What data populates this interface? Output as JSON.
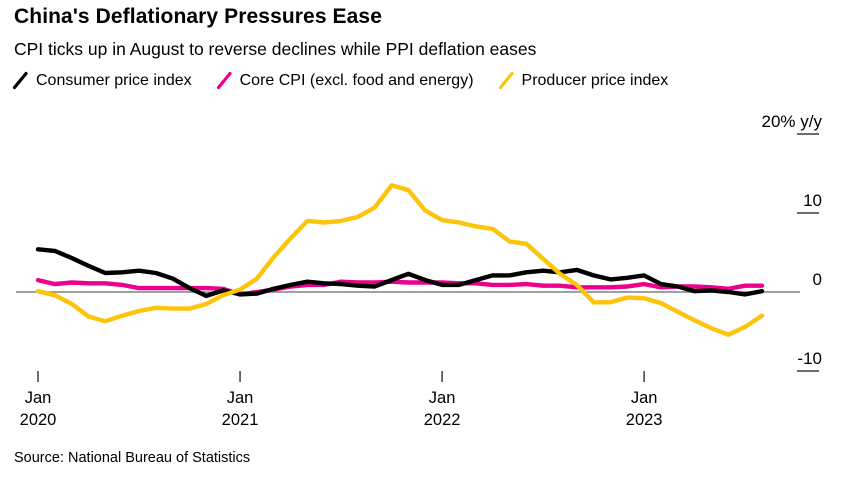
{
  "title": "China's Deflationary Pressures Ease",
  "subtitle": "CPI ticks up in August to reverse declines while PPI deflation eases",
  "source": "Source: National Bureau of Statistics",
  "colors": {
    "cpi": "#000000",
    "core_cpi": "#ec008c",
    "ppi": "#fdc40a",
    "zero_line": "#808080",
    "tick": "#3d3d3d"
  },
  "legend": [
    {
      "label": "Consumer price index",
      "color": "#000000"
    },
    {
      "label": "Core CPI (excl. food and energy)",
      "color": "#ec008c"
    },
    {
      "label": "Producer price index",
      "color": "#fdc40a"
    }
  ],
  "chart_data": {
    "type": "line",
    "title": "China's Deflationary Pressures Ease",
    "subtitle": "CPI ticks up in August to reverse declines while PPI deflation eases",
    "x_unit": "month",
    "x_range": [
      "Jan 2020",
      "Aug 2023"
    ],
    "x_tick_labels": [
      [
        "Jan",
        "2020"
      ],
      [
        "Jan",
        "2021"
      ],
      [
        "Jan",
        "2022"
      ],
      [
        "Jan",
        "2023"
      ]
    ],
    "x_tick_indices": [
      0,
      12,
      24,
      36
    ],
    "y_axis_top_label": "20% y/y",
    "y_ticks": [
      20,
      10,
      0,
      -10
    ],
    "ylim": [
      -13,
      23
    ],
    "grid": false,
    "legend_position": "top-left",
    "series": [
      {
        "name": "Consumer price index",
        "color": "#000000",
        "values": [
          5.4,
          5.2,
          4.3,
          3.3,
          2.4,
          2.5,
          2.7,
          2.4,
          1.7,
          0.5,
          -0.5,
          0.2,
          -0.3,
          -0.2,
          0.4,
          0.9,
          1.3,
          1.1,
          1.0,
          0.8,
          0.7,
          1.5,
          2.3,
          1.5,
          0.9,
          0.9,
          1.5,
          2.1,
          2.1,
          2.5,
          2.7,
          2.5,
          2.8,
          2.1,
          1.6,
          1.8,
          2.1,
          1.0,
          0.7,
          0.1,
          0.2,
          0.0,
          -0.3,
          0.1
        ]
      },
      {
        "name": "Core CPI (excl. food and energy)",
        "color": "#ec008c",
        "values": [
          1.5,
          1.0,
          1.2,
          1.1,
          1.1,
          0.9,
          0.5,
          0.5,
          0.5,
          0.5,
          0.5,
          0.4,
          -0.3,
          0.0,
          0.3,
          0.7,
          0.9,
          0.9,
          1.3,
          1.2,
          1.2,
          1.3,
          1.2,
          1.2,
          1.2,
          1.1,
          1.1,
          0.9,
          0.9,
          1.0,
          0.8,
          0.8,
          0.6,
          0.6,
          0.6,
          0.7,
          1.0,
          0.6,
          0.7,
          0.7,
          0.6,
          0.4,
          0.8,
          0.8
        ]
      },
      {
        "name": "Producer price index",
        "color": "#fdc40a",
        "values": [
          0.1,
          -0.4,
          -1.5,
          -3.1,
          -3.7,
          -3.0,
          -2.4,
          -2.0,
          -2.1,
          -2.1,
          -1.5,
          -0.4,
          0.3,
          1.7,
          4.4,
          6.8,
          9.0,
          8.8,
          9.0,
          9.5,
          10.7,
          13.5,
          12.9,
          10.3,
          9.1,
          8.8,
          8.3,
          8.0,
          6.4,
          6.1,
          4.2,
          2.3,
          0.9,
          -1.3,
          -1.3,
          -0.7,
          -0.8,
          -1.4,
          -2.5,
          -3.6,
          -4.6,
          -5.4,
          -4.4,
          -3.0
        ]
      }
    ]
  }
}
